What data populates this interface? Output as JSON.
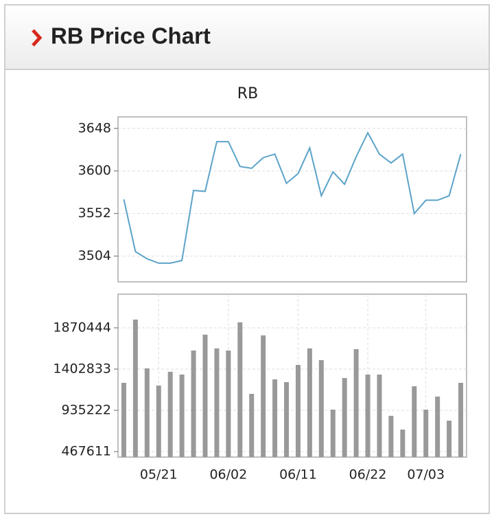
{
  "header": {
    "title": "RB Price Chart"
  },
  "chart_data": [
    {
      "type": "line",
      "title": "RB",
      "color": "#5ba3c9",
      "grid": true,
      "values": [
        3568,
        3509,
        3501,
        3496,
        3496,
        3499,
        3578,
        3577,
        3633,
        3633,
        3605,
        3603,
        3615,
        3619,
        3586,
        3597,
        3626,
        3572,
        3599,
        3585,
        3616,
        3643,
        3619,
        3609,
        3619,
        3552,
        3567,
        3567,
        3572,
        3619
      ],
      "ylim": [
        3475,
        3661
      ],
      "yticks": [
        3504,
        3552,
        3600,
        3648
      ]
    },
    {
      "type": "bar",
      "color": "#999999",
      "grid": true,
      "categories": [
        null,
        null,
        null,
        "05/21",
        null,
        null,
        null,
        null,
        null,
        "06/02",
        null,
        null,
        null,
        null,
        null,
        "06/11",
        null,
        null,
        null,
        null,
        null,
        "06/22",
        null,
        null,
        null,
        null,
        "07/03",
        null,
        null,
        null
      ],
      "values": [
        1247000,
        1964000,
        1411000,
        1216000,
        1372000,
        1341000,
        1613000,
        1793000,
        1637000,
        1613000,
        1933000,
        1122000,
        1785000,
        1286000,
        1255000,
        1450000,
        1637000,
        1504000,
        943000,
        1301000,
        1629000,
        1341000,
        1341000,
        873000,
        717000,
        1208000,
        943000,
        1091000,
        818000,
        1247000
      ],
      "ylim": [
        405000,
        2252000
      ],
      "yticks": [
        467611,
        935222,
        1402833,
        1870444
      ]
    }
  ]
}
